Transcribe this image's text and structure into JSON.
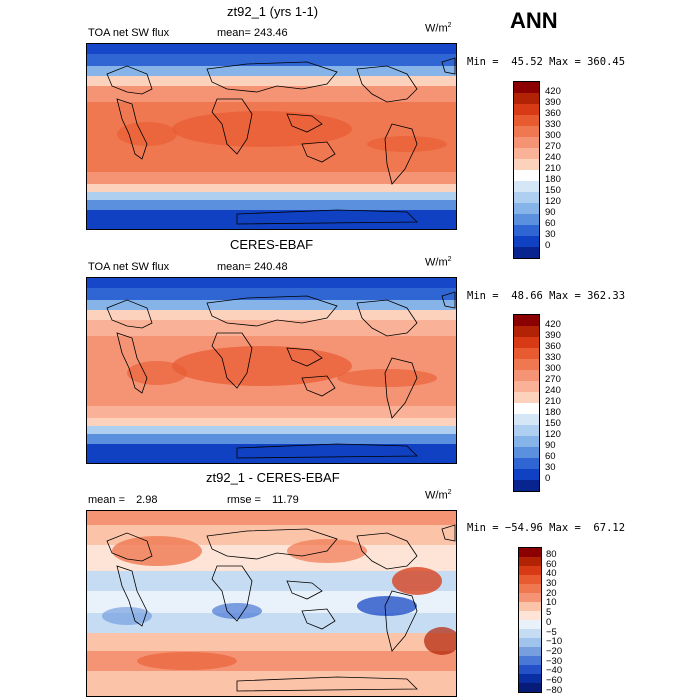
{
  "season": "ANN",
  "units_base": "W/m",
  "units_exp": "2",
  "panels": [
    {
      "title": "zt92_1 (yrs 1-1)",
      "left_label": "TOA net SW flux",
      "stat_label": "mean=",
      "stat_value": "243.46",
      "range_text": "Min =  45.52 Max = 360.45",
      "levels": [
        "420",
        "390",
        "360",
        "330",
        "300",
        "270",
        "240",
        "210",
        "180",
        "150",
        "120",
        "90",
        "60",
        "30",
        "0"
      ],
      "colors": [
        "#8b0000",
        "#b22205",
        "#d73a14",
        "#e85a30",
        "#f07851",
        "#f59474",
        "#f9b297",
        "#fcd2bd",
        "#ffffff",
        "#d5e6f7",
        "#aecff0",
        "#86b3e8",
        "#5a90de",
        "#3066d4",
        "#1041c2",
        "#08248f"
      ]
    },
    {
      "title": "CERES-EBAF",
      "left_label": "TOA net SW flux",
      "stat_label": "mean=",
      "stat_value": "240.48",
      "range_text": "Min =  48.66 Max = 362.33",
      "levels": [
        "420",
        "390",
        "360",
        "330",
        "300",
        "270",
        "240",
        "210",
        "180",
        "150",
        "120",
        "90",
        "60",
        "30",
        "0"
      ],
      "colors": [
        "#8b0000",
        "#b22205",
        "#d73a14",
        "#e85a30",
        "#f07851",
        "#f59474",
        "#f9b297",
        "#fcd2bd",
        "#ffffff",
        "#d5e6f7",
        "#aecff0",
        "#86b3e8",
        "#5a90de",
        "#3066d4",
        "#1041c2",
        "#08248f"
      ]
    },
    {
      "title": "zt92_1 - CERES-EBAF",
      "left_label": "mean =",
      "left_value": "2.98",
      "stat_label": "rmse =",
      "stat_value": "11.79",
      "range_text": "Min = −54.96 Max =  67.12",
      "levels": [
        "80",
        "60",
        "40",
        "30",
        "20",
        "10",
        "5",
        "0",
        "−5",
        "−10",
        "−20",
        "−30",
        "−40",
        "−60",
        "−80"
      ],
      "colors": [
        "#8b0000",
        "#b22205",
        "#d73a14",
        "#e85a30",
        "#f07851",
        "#f59474",
        "#fbc3a8",
        "#fde4d6",
        "#e9f2fb",
        "#c6dcf3",
        "#a0c3ec",
        "#779fe0",
        "#4a78d6",
        "#2451c8",
        "#0a2fa3",
        "#061c78"
      ]
    }
  ],
  "chart_data": [
    {
      "type": "heatmap",
      "title": "zt92_1 (yrs 1-1)",
      "variable": "TOA net SW flux",
      "units": "W/m2",
      "mean": 243.46,
      "min": 45.52,
      "max": 360.45,
      "colorbar_levels": [
        0,
        30,
        60,
        90,
        120,
        150,
        180,
        210,
        240,
        270,
        300,
        330,
        360,
        390,
        420
      ]
    },
    {
      "type": "heatmap",
      "title": "CERES-EBAF",
      "variable": "TOA net SW flux",
      "units": "W/m2",
      "mean": 240.48,
      "min": 48.66,
      "max": 362.33,
      "colorbar_levels": [
        0,
        30,
        60,
        90,
        120,
        150,
        180,
        210,
        240,
        270,
        300,
        330,
        360,
        390,
        420
      ]
    },
    {
      "type": "heatmap",
      "title": "zt92_1 - CERES-EBAF",
      "units": "W/m2",
      "mean": 2.98,
      "rmse": 11.79,
      "min": -54.96,
      "max": 67.12,
      "colorbar_levels": [
        -80,
        -60,
        -40,
        -30,
        -20,
        -10,
        -5,
        0,
        5,
        10,
        20,
        30,
        40,
        60,
        80
      ]
    }
  ]
}
